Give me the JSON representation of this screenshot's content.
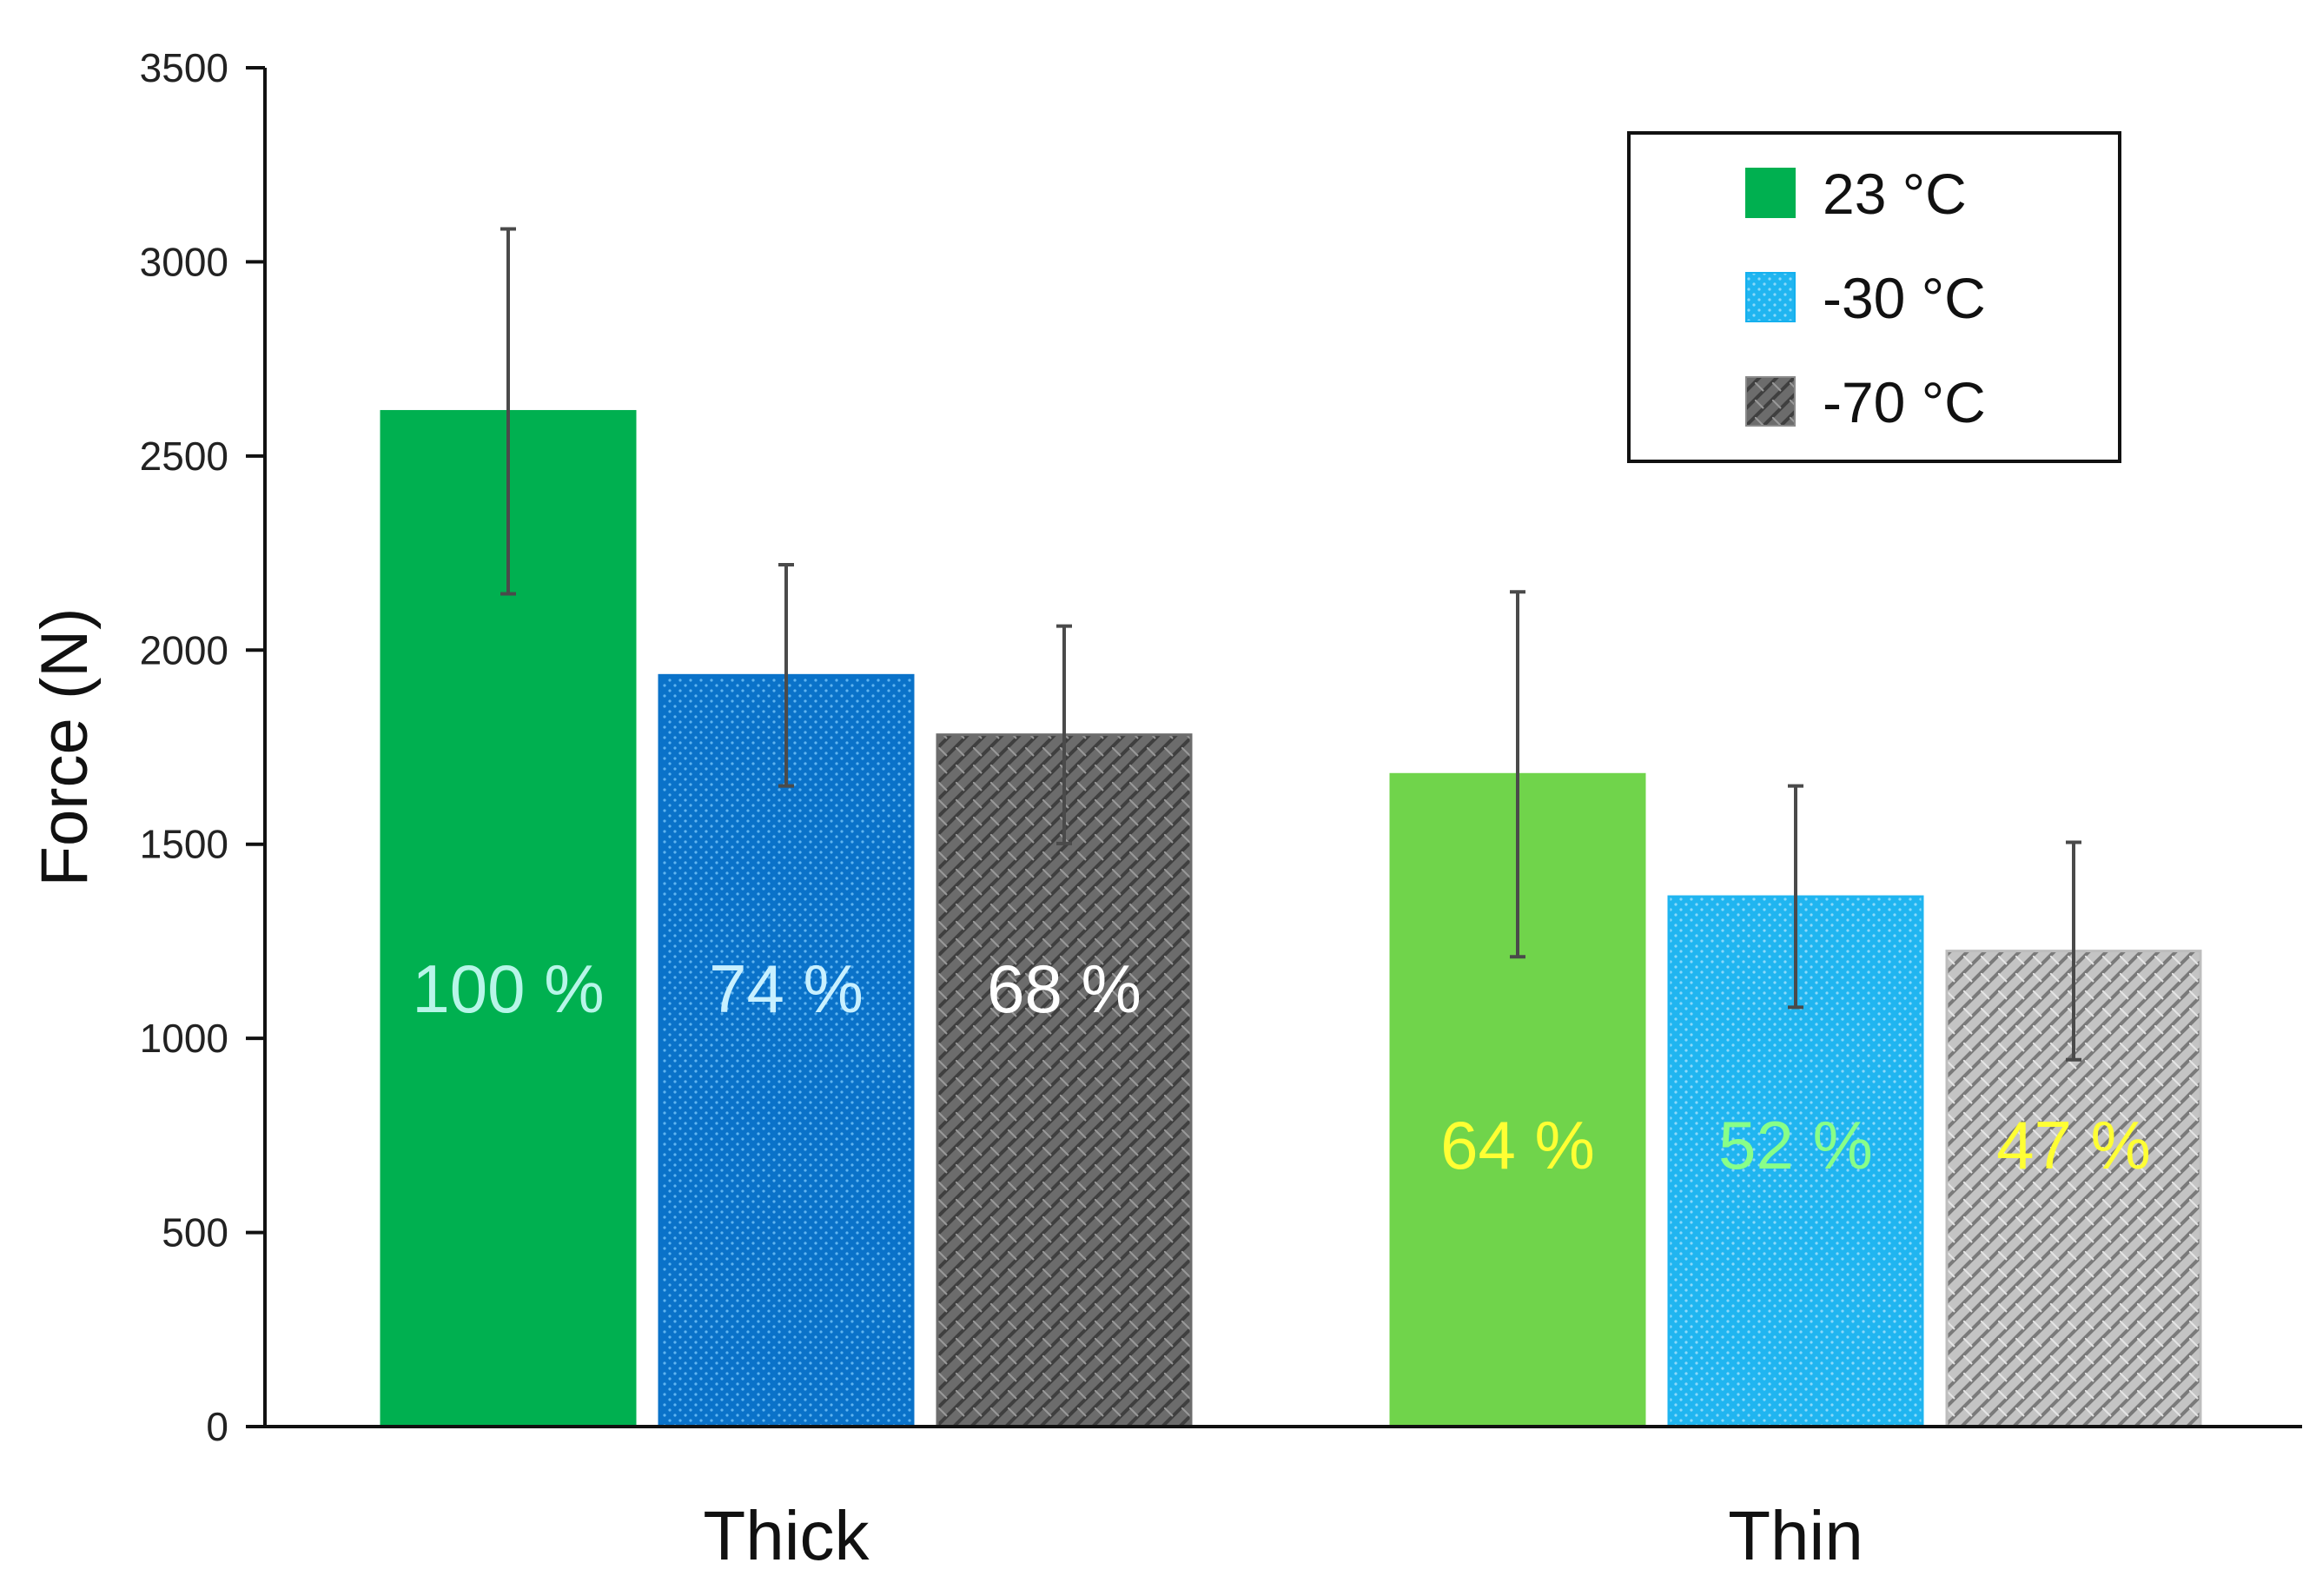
{
  "chart_data": {
    "type": "bar",
    "title": "",
    "xlabel": "",
    "ylabel": "Force (N)",
    "ylim": [
      0,
      3500
    ],
    "yticks": [
      0,
      500,
      1000,
      1500,
      2000,
      2500,
      3000,
      3500
    ],
    "grid": false,
    "legend_position": "top-right",
    "categories": [
      "Thick",
      "Thin"
    ],
    "series": [
      {
        "name": "23 °C",
        "values": [
          2615,
          1680
        ],
        "errors": [
          470,
          470
        ],
        "labels": [
          "100 %",
          "64 %"
        ],
        "colors": [
          "#00b050",
          "#70d44b"
        ],
        "label_colors": [
          "#b7f5e8",
          "#ffff33"
        ],
        "legend_color": "#00b050"
      },
      {
        "name": "-30 °C",
        "values": [
          1935,
          1365
        ],
        "errors": [
          285,
          285
        ],
        "labels": [
          "74 %",
          "52 %"
        ],
        "colors": [
          "#0a72c9",
          "#20b5f0"
        ],
        "label_colors": [
          "#c8f0ff",
          "#88ff88"
        ],
        "legend_color": "#15b0ee"
      },
      {
        "name": "-70 °C",
        "values": [
          1782,
          1225
        ],
        "errors": [
          280,
          280
        ],
        "labels": [
          "68 %",
          "47 %"
        ],
        "colors": [
          "#6c6c6c",
          "#bdbdbd"
        ],
        "label_colors": [
          "#ffffff",
          "#ffff33"
        ],
        "legend_color": "#8a8a8a"
      }
    ]
  }
}
